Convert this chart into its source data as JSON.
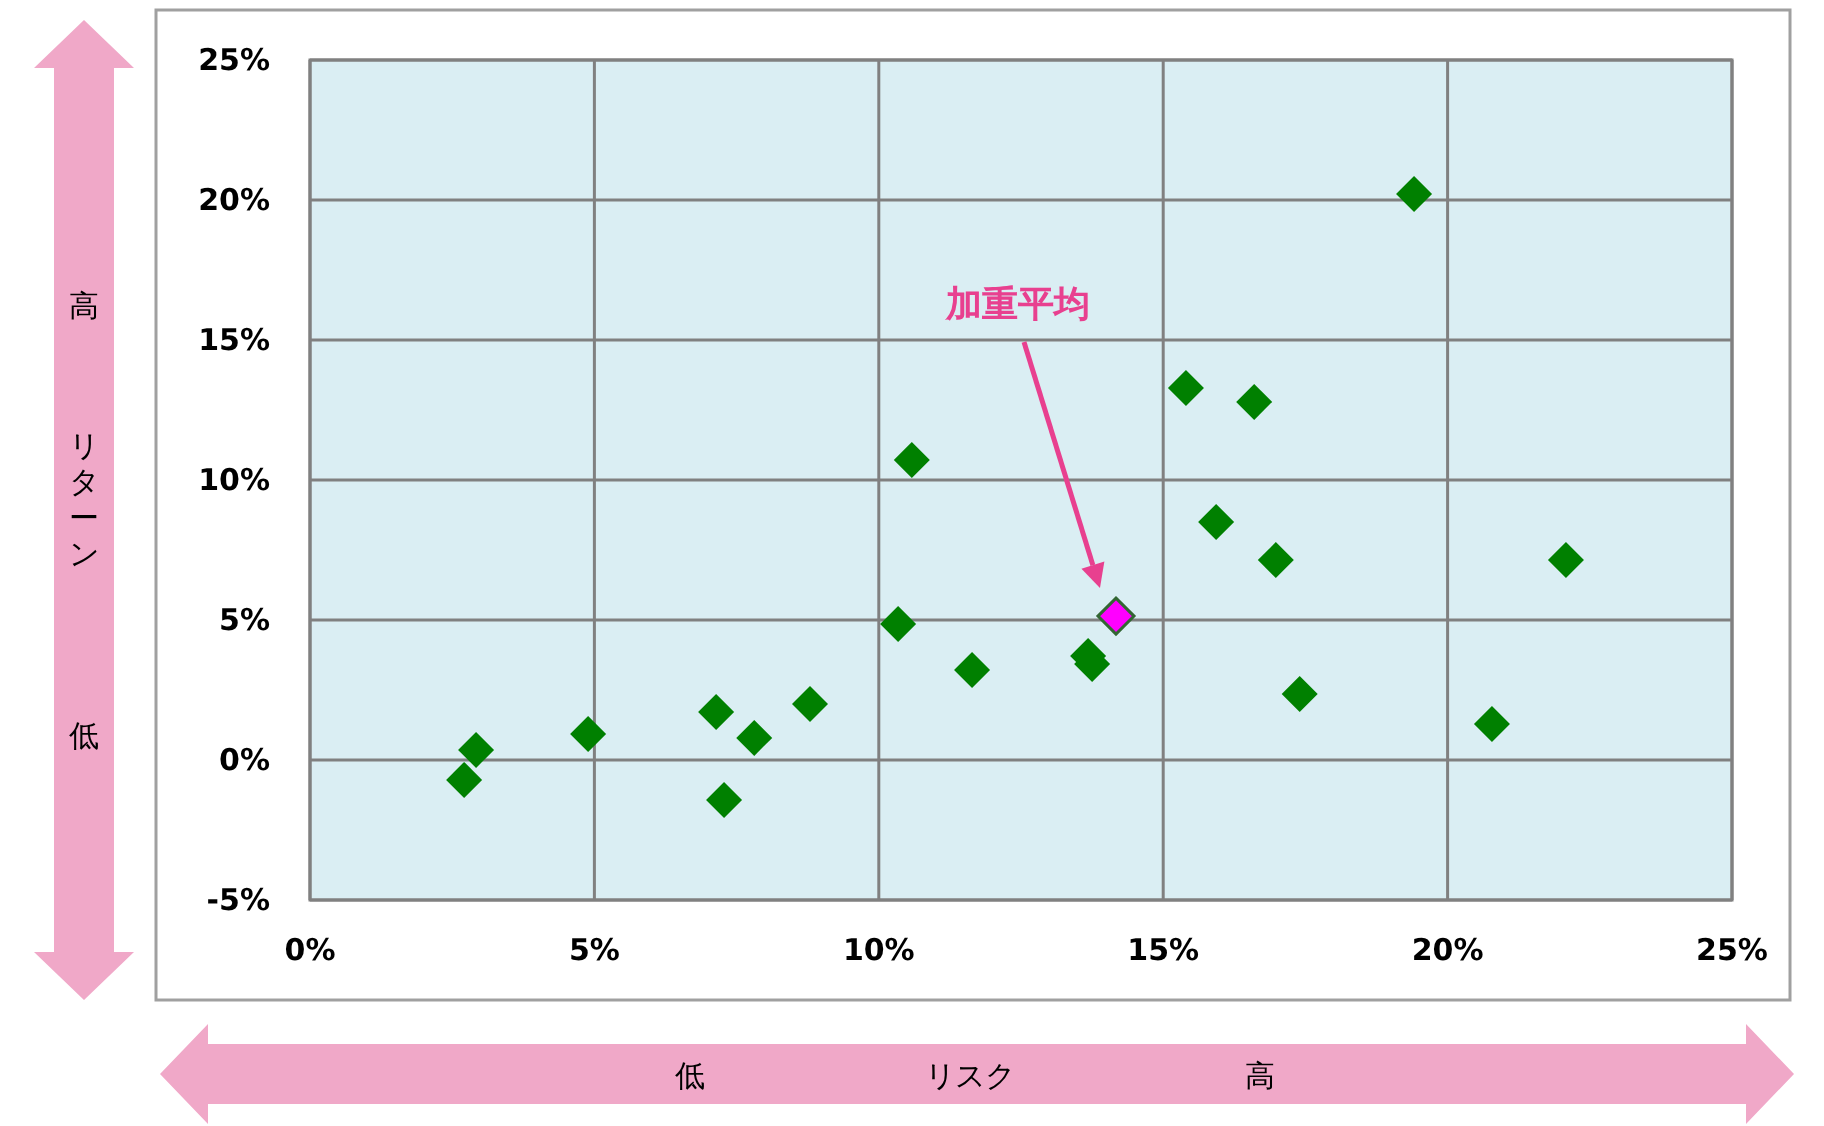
{
  "chart_data": {
    "type": "scatter",
    "xlabel": "リスク",
    "ylabel": "リターン",
    "annotations": [
      "加重平均",
      "高",
      "低",
      "低",
      "高"
    ],
    "xlim": [
      0,
      25
    ],
    "ylim": [
      -5,
      25
    ],
    "xticks": [
      {
        "value": 0,
        "label": "0%"
      },
      {
        "value": 5,
        "label": "5%"
      },
      {
        "value": 10,
        "label": "10%"
      },
      {
        "value": 15,
        "label": "15%"
      },
      {
        "value": 20,
        "label": "20%"
      },
      {
        "value": 25,
        "label": "25%"
      }
    ],
    "yticks": [
      {
        "value": -5,
        "label": "-5%"
      },
      {
        "value": 0,
        "label": "0%"
      },
      {
        "value": 5,
        "label": "5%"
      },
      {
        "value": 10,
        "label": "10%"
      },
      {
        "value": 15,
        "label": "15%"
      },
      {
        "value": 20,
        "label": "20%"
      },
      {
        "value": 25,
        "label": "25%"
      }
    ],
    "grid": true,
    "marker": "diamond",
    "series": [
      {
        "color": "#008000",
        "x": [
          2.71,
          2.92,
          4.89,
          7.14,
          7.28,
          7.81,
          8.79,
          10.34,
          10.58,
          11.64,
          13.68,
          13.75,
          15.4,
          15.93,
          16.6,
          16.98,
          17.4,
          19.41,
          20.78,
          22.08
        ],
        "values": [
          -0.71,
          0.36,
          0.93,
          1.71,
          -1.43,
          0.79,
          2.0,
          4.86,
          10.71,
          3.21,
          3.71,
          3.43,
          13.29,
          8.5,
          12.79,
          7.14,
          2.36,
          20.21,
          1.29,
          7.14
        ]
      },
      {
        "color": "#ff00ff",
        "x": [
          14.17
        ],
        "values": [
          5.14
        ]
      }
    ]
  }
}
